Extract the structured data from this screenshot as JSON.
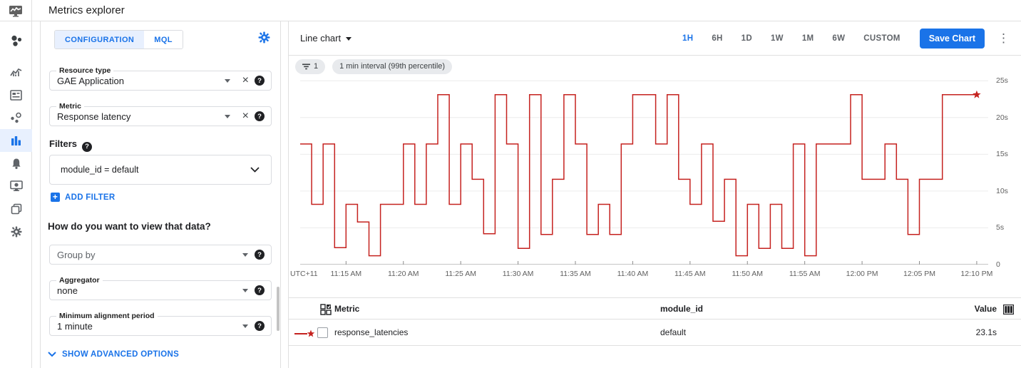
{
  "header": {
    "title": "Metrics explorer"
  },
  "sidebar": {
    "items": [
      {
        "name": "overview"
      },
      {
        "name": "dashboards"
      },
      {
        "name": "scorecards"
      },
      {
        "name": "services"
      },
      {
        "name": "metrics-explorer",
        "active": true
      },
      {
        "name": "alerting"
      },
      {
        "name": "uptime-checks"
      },
      {
        "name": "groups"
      },
      {
        "name": "settings"
      }
    ]
  },
  "config_panel": {
    "tabs": [
      {
        "label": "CONFIGURATION",
        "active": true
      },
      {
        "label": "MQL",
        "active": false
      }
    ],
    "resource_type": {
      "label": "Resource type",
      "value": "GAE Application"
    },
    "metric": {
      "label": "Metric",
      "value": "Response latency"
    },
    "filters_label": "Filters",
    "filter_value": "module_id = default",
    "add_filter_label": "ADD FILTER",
    "view_question": "How do you want to view that data?",
    "group_by": {
      "placeholder": "Group by"
    },
    "aggregator": {
      "label": "Aggregator",
      "value": "none"
    },
    "min_alignment": {
      "label": "Minimum alignment period",
      "value": "1 minute"
    },
    "show_advanced_label": "SHOW ADVANCED OPTIONS"
  },
  "chart_panel": {
    "chart_type_label": "Line chart",
    "time_ranges": [
      "1H",
      "6H",
      "1D",
      "1W",
      "1M",
      "6W",
      "CUSTOM"
    ],
    "active_time_range": "1H",
    "save_button_label": "Save Chart",
    "chips": {
      "filter_count": "1",
      "interval": "1 min interval (99th percentile)"
    }
  },
  "chart_data": {
    "type": "line",
    "subtype": "step",
    "title": "",
    "xlabel": "",
    "ylabel": "",
    "unit": "s",
    "ylim": [
      0,
      25.8
    ],
    "grid": true,
    "line_color": "#c5221f",
    "end_marker": "star",
    "timezone_label": "UTC+11",
    "interval_minutes": 1,
    "x_start_time": "11:11 AM",
    "x_end_time": "12:10 PM",
    "x_ticks": [
      {
        "minute_offset": 4,
        "label": "11:15 AM"
      },
      {
        "minute_offset": 9,
        "label": "11:20 AM"
      },
      {
        "minute_offset": 14,
        "label": "11:25 AM"
      },
      {
        "minute_offset": 19,
        "label": "11:30 AM"
      },
      {
        "minute_offset": 24,
        "label": "11:35 AM"
      },
      {
        "minute_offset": 29,
        "label": "11:40 AM"
      },
      {
        "minute_offset": 34,
        "label": "11:45 AM"
      },
      {
        "minute_offset": 39,
        "label": "11:50 AM"
      },
      {
        "minute_offset": 44,
        "label": "11:55 AM"
      },
      {
        "minute_offset": 49,
        "label": "12:00 PM"
      },
      {
        "minute_offset": 54,
        "label": "12:05 PM"
      },
      {
        "minute_offset": 59,
        "label": "12:10 PM"
      }
    ],
    "y_ticks": [
      {
        "value": 0,
        "label": "0"
      },
      {
        "value": 5,
        "label": "5s"
      },
      {
        "value": 10,
        "label": "10s"
      },
      {
        "value": 15,
        "label": "15s"
      },
      {
        "value": 20,
        "label": "20s"
      },
      {
        "value": 25,
        "label": "25s"
      }
    ],
    "series": [
      {
        "name": "response_latencies",
        "values_per_minute": [
          16.4,
          8.2,
          16.4,
          2.3,
          8.2,
          5.8,
          1.2,
          8.2,
          8.2,
          16.4,
          8.2,
          16.4,
          23.1,
          8.2,
          16.4,
          11.6,
          4.2,
          23.1,
          16.4,
          2.2,
          23.1,
          4.1,
          11.6,
          23.1,
          16.4,
          4.1,
          8.2,
          4.1,
          16.4,
          23.1,
          23.1,
          16.4,
          23.1,
          11.6,
          8.2,
          16.4,
          5.9,
          11.6,
          1.2,
          8.2,
          2.2,
          8.2,
          2.2,
          16.4,
          1.2,
          16.4,
          16.4,
          16.4,
          23.1,
          11.6,
          11.6,
          16.4,
          11.6,
          4.1,
          11.6,
          11.6,
          23.1,
          23.1,
          23.1
        ]
      }
    ]
  },
  "table": {
    "columns": {
      "metric": "Metric",
      "module_id": "module_id",
      "value": "Value"
    },
    "rows": [
      {
        "metric": "response_latencies",
        "module_id": "default",
        "value": "23.1s"
      }
    ]
  },
  "icons": {
    "help": "?",
    "close": "×",
    "kebab": "⋮",
    "plus": "+"
  },
  "colors": {
    "accent": "#1a73e8",
    "accent_bg": "#e8f0fe",
    "line": "#c5221f",
    "border": "#e0e0e0",
    "text_gray": "#5f6368"
  }
}
